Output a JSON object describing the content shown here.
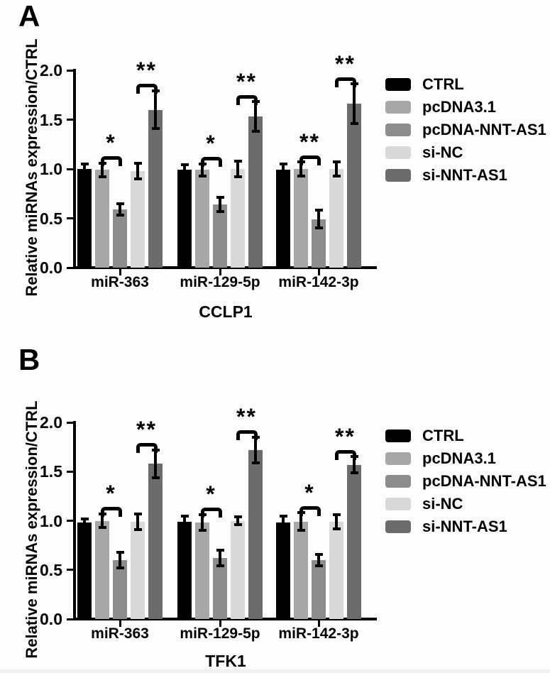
{
  "figure": {
    "panels": [
      {
        "letter": "A",
        "cell_line": "CCLP1"
      },
      {
        "letter": "B",
        "cell_line": "TFK1"
      }
    ]
  },
  "significance_symbols": {
    "single": "*",
    "double": "**"
  },
  "colors": {
    "ctrl": "#000000",
    "pcdna31": "#a7a7a7",
    "pcdna_nnt_as1": "#8d8d8d",
    "si_nc": "#d9d9d9",
    "si_nnt_as1": "#6c6c6c"
  },
  "chart_data": [
    {
      "type": "bar",
      "panel": "A",
      "title": "CCLP1",
      "xlabel": "",
      "ylabel": "Relative miRNAs expression/CTRL",
      "ylim": [
        0.0,
        2.0
      ],
      "yticks": [
        "0.0",
        "0.5",
        "1.0",
        "1.5",
        "2.0"
      ],
      "grid": false,
      "legend_position": "right",
      "categories": [
        "miR-363",
        "miR-129-5p",
        "miR-142-3p"
      ],
      "series": [
        {
          "name": "CTRL",
          "color": "#000000",
          "values": [
            1.0,
            0.99,
            0.99
          ],
          "errors": [
            0.05,
            0.05,
            0.06
          ]
        },
        {
          "name": "pcDNA3.1",
          "color": "#a7a7a7",
          "values": [
            0.99,
            0.99,
            1.0
          ],
          "errors": [
            0.07,
            0.06,
            0.07
          ]
        },
        {
          "name": "pcDNA-NNT-AS1",
          "color": "#8d8d8d",
          "values": [
            0.59,
            0.64,
            0.49
          ],
          "errors": [
            0.06,
            0.07,
            0.09
          ]
        },
        {
          "name": "si-NC",
          "color": "#d9d9d9",
          "values": [
            0.98,
            1.0,
            1.0
          ],
          "errors": [
            0.08,
            0.08,
            0.07
          ]
        },
        {
          "name": "si-NNT-AS1",
          "color": "#6c6c6c",
          "values": [
            1.6,
            1.53,
            1.66
          ],
          "errors": [
            0.19,
            0.15,
            0.2
          ]
        }
      ],
      "significance": [
        {
          "category": 0,
          "bars": [
            1,
            2
          ],
          "label": "*"
        },
        {
          "category": 0,
          "bars": [
            3,
            4
          ],
          "label": "**"
        },
        {
          "category": 1,
          "bars": [
            1,
            2
          ],
          "label": "*"
        },
        {
          "category": 1,
          "bars": [
            3,
            4
          ],
          "label": "**"
        },
        {
          "category": 2,
          "bars": [
            1,
            2
          ],
          "label": "**"
        },
        {
          "category": 2,
          "bars": [
            3,
            4
          ],
          "label": "**"
        }
      ]
    },
    {
      "type": "bar",
      "panel": "B",
      "title": "TFK1",
      "xlabel": "",
      "ylabel": "Relative miRNAs expression/CTRL",
      "ylim": [
        0.0,
        2.0
      ],
      "yticks": [
        "0.0",
        "0.5",
        "1.0",
        "1.5",
        "2.0"
      ],
      "grid": false,
      "legend_position": "right",
      "categories": [
        "miR-363",
        "miR-129-5p",
        "miR-142-3p"
      ],
      "series": [
        {
          "name": "CTRL",
          "color": "#000000",
          "values": [
            0.98,
            0.99,
            0.98
          ],
          "errors": [
            0.04,
            0.06,
            0.07
          ]
        },
        {
          "name": "pcDNA3.1",
          "color": "#a7a7a7",
          "values": [
            1.0,
            0.98,
            0.99
          ],
          "errors": [
            0.07,
            0.08,
            0.09
          ]
        },
        {
          "name": "pcDNA-NNT-AS1",
          "color": "#8d8d8d",
          "values": [
            0.6,
            0.62,
            0.6
          ],
          "errors": [
            0.08,
            0.08,
            0.06
          ]
        },
        {
          "name": "si-NC",
          "color": "#d9d9d9",
          "values": [
            0.99,
            1.0,
            0.99
          ],
          "errors": [
            0.08,
            0.04,
            0.07
          ]
        },
        {
          "name": "si-NNT-AS1",
          "color": "#6c6c6c",
          "values": [
            1.58,
            1.72,
            1.57
          ],
          "errors": [
            0.14,
            0.13,
            0.08
          ]
        }
      ],
      "significance": [
        {
          "category": 0,
          "bars": [
            1,
            2
          ],
          "label": "*"
        },
        {
          "category": 0,
          "bars": [
            3,
            4
          ],
          "label": "**"
        },
        {
          "category": 1,
          "bars": [
            1,
            2
          ],
          "label": "*"
        },
        {
          "category": 1,
          "bars": [
            3,
            4
          ],
          "label": "**"
        },
        {
          "category": 2,
          "bars": [
            1,
            2
          ],
          "label": "*"
        },
        {
          "category": 2,
          "bars": [
            3,
            4
          ],
          "label": "**"
        }
      ]
    }
  ]
}
